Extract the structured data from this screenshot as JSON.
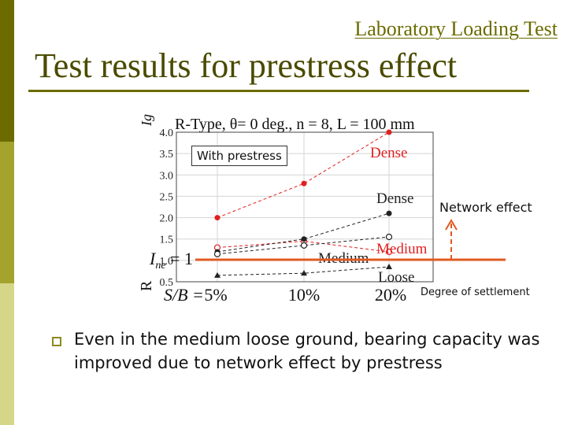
{
  "slide": {
    "header_label": "Laboratory Loading Test",
    "title": "Test results for prestress effect",
    "bullet": "Even in the medium loose ground, bearing capacity was improved due to network effect by prestress"
  },
  "annotations": {
    "with_prestress": "With prestress",
    "network_effect": "Network effect",
    "degree_of_settlement": "Degree of settlement",
    "reference_label": "I",
    "reference_subscript": "ne",
    "reference_value": " = 1"
  },
  "chart_data": {
    "type": "line",
    "title": "R-Type, θ= 0 deg., n = 8, L = 100 mm",
    "ylabel": "Ig",
    "ylabel_overlay": "R",
    "xlabel": "S/B =",
    "x": [
      5,
      10,
      20
    ],
    "x_tick_labels": [
      "5%",
      "10%",
      "20%"
    ],
    "ylim": [
      0.5,
      4.0
    ],
    "y_ticks": [
      0.5,
      1.0,
      1.5,
      2.0,
      2.5,
      3.0,
      3.5,
      4.0
    ],
    "y_tick_labels": [
      "0.5",
      "1.0",
      "1.5",
      "2.0",
      "2.5",
      "3.0",
      "3.5",
      "4.0"
    ],
    "grid": true,
    "reference_line": 1.0,
    "series": [
      {
        "name": "Dense",
        "group": "with-prestress",
        "color": "#e02020",
        "marker": "filled-circle",
        "values": [
          2.0,
          2.8,
          4.0
        ]
      },
      {
        "name": "Medium",
        "group": "with-prestress",
        "color": "#e02020",
        "marker": "open-circle",
        "values": [
          1.3,
          1.45,
          1.2
        ]
      },
      {
        "name": "Dense",
        "group": "without-prestress",
        "color": "#222222",
        "marker": "filled-circle",
        "values": [
          1.2,
          1.5,
          2.1
        ]
      },
      {
        "name": "Medium",
        "group": "without-prestress",
        "color": "#222222",
        "marker": "open-circle",
        "values": [
          1.15,
          1.35,
          1.55
        ]
      },
      {
        "name": "Loose",
        "group": "without-prestress",
        "color": "#222222",
        "marker": "filled-triangle",
        "values": [
          0.65,
          0.7,
          0.85
        ]
      }
    ]
  }
}
